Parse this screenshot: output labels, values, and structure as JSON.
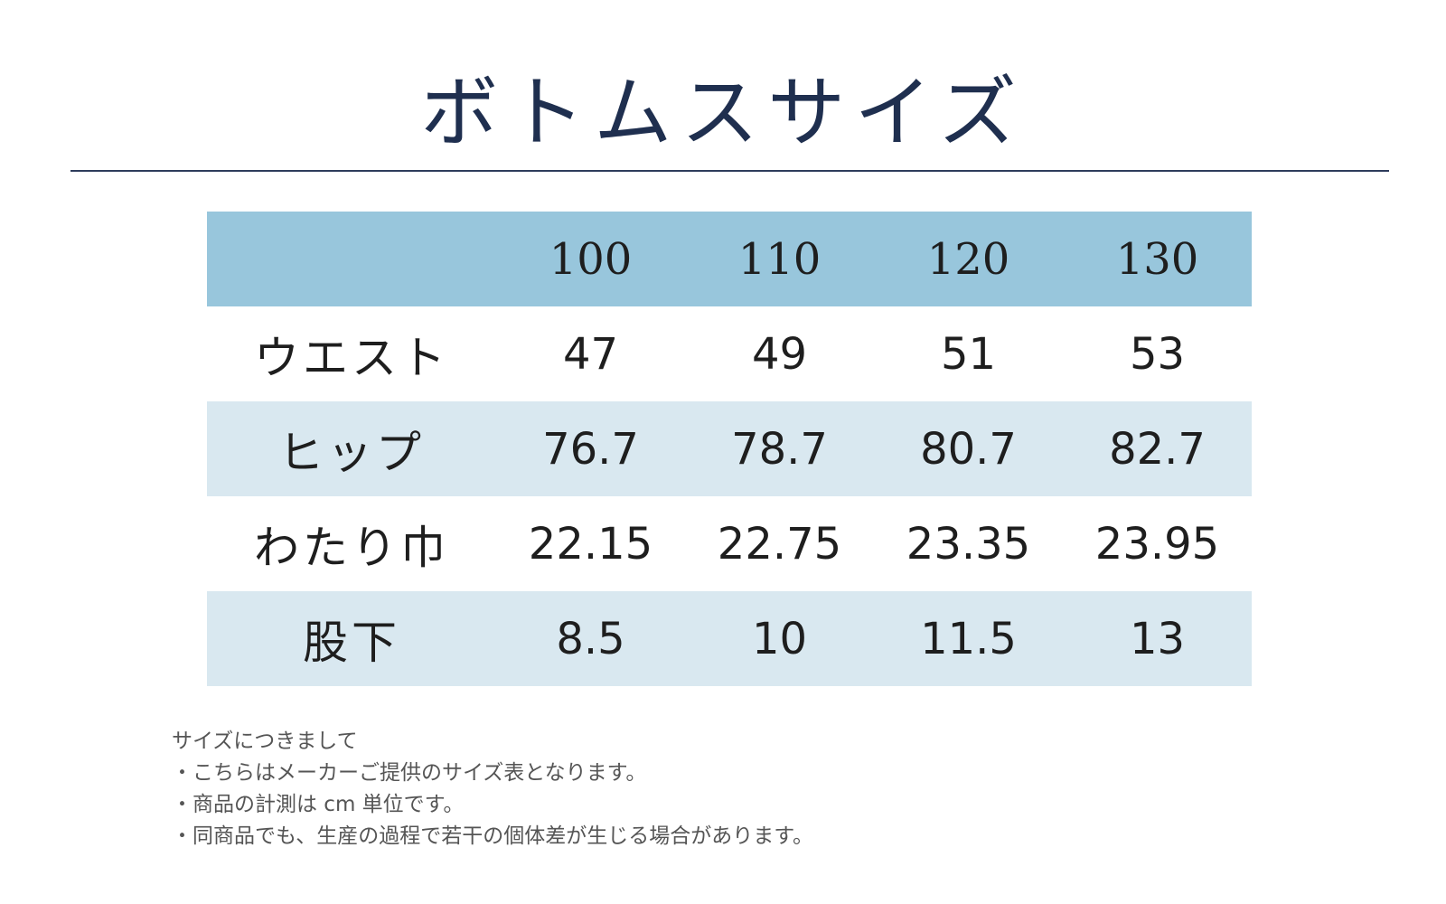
{
  "title": "ボトムスサイズ",
  "table": {
    "sizes": [
      "100",
      "110",
      "120",
      "130"
    ],
    "rows": [
      {
        "label": "ウエスト",
        "values": [
          "47",
          "49",
          "51",
          "53"
        ]
      },
      {
        "label": "ヒップ",
        "values": [
          "76.7",
          "78.7",
          "80.7",
          "82.7"
        ]
      },
      {
        "label": "わたり巾",
        "values": [
          "22.15",
          "22.75",
          "23.35",
          "23.95"
        ]
      },
      {
        "label": "股下",
        "values": [
          "8.5",
          "10",
          "11.5",
          "13"
        ]
      }
    ]
  },
  "notes": {
    "heading": "サイズにつきまして",
    "items": [
      "・こちらはメーカーご提供のサイズ表となります。",
      "・商品の計測は cm 単位です。",
      "・同商品でも、生産の過程で若干の個体差が生じる場合があります。"
    ]
  },
  "colors": {
    "header_row": "#98c6dc",
    "alt_row": "#d9e8f0",
    "title_text": "#1f2f4f"
  }
}
